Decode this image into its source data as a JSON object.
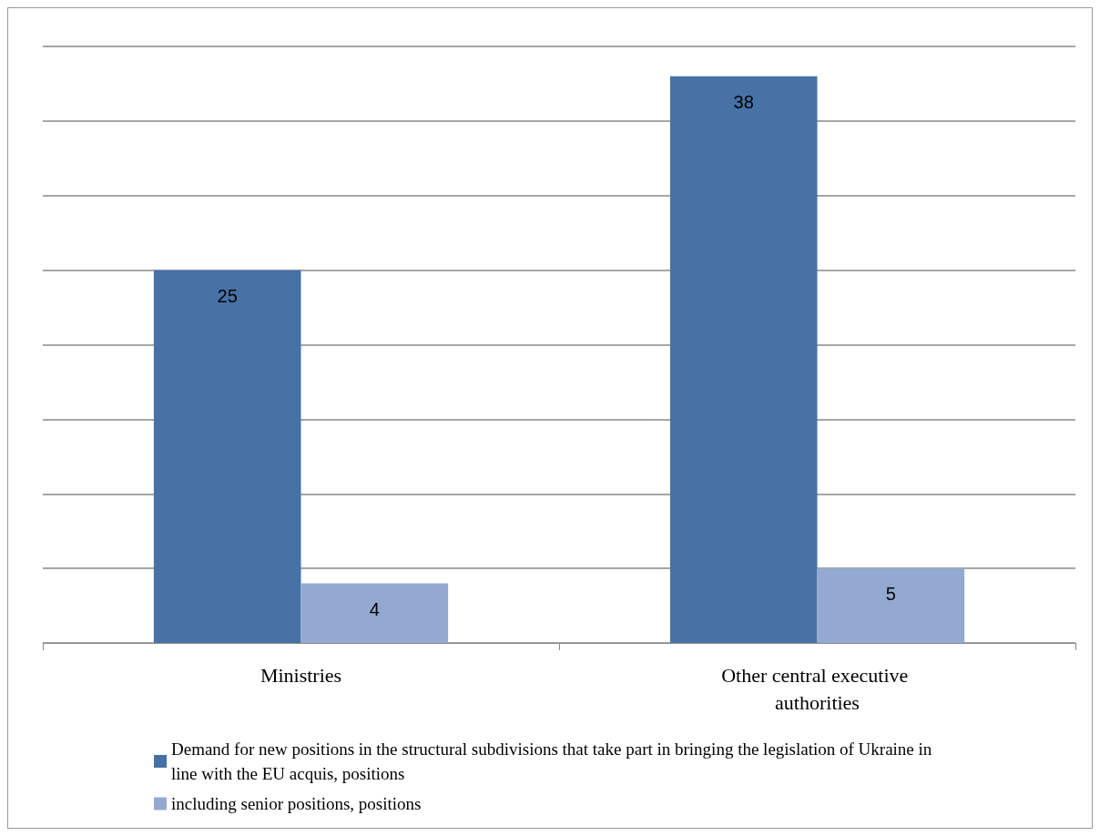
{
  "chart_data": {
    "type": "bar",
    "categories": [
      "Ministries",
      "Other central executive authorities"
    ],
    "series": [
      {
        "name": "Demand for new positions in the structural subdivisions that take part in bringing the legislation of Ukraine in line with the EU acquis, positions",
        "color": "#4672a6",
        "values": [
          25,
          38
        ]
      },
      {
        "name": "including senior positions, positions",
        "color": "#93a9d1",
        "values": [
          4,
          5
        ]
      }
    ],
    "ylim": [
      0,
      40
    ],
    "yticks": [
      {
        "value": 0,
        "label": null
      },
      {
        "value": 5,
        "label": null
      },
      {
        "value": 10,
        "label": null
      },
      {
        "value": 15,
        "label": null
      },
      {
        "value": 20,
        "label": null
      },
      {
        "value": 25,
        "label": null
      },
      {
        "value": 30,
        "label": null
      },
      {
        "value": 35,
        "label": null
      },
      {
        "value": 40,
        "label": null
      }
    ],
    "tick_labels": "x",
    "grid": "y",
    "legend": "bottom",
    "data_labels": true
  }
}
